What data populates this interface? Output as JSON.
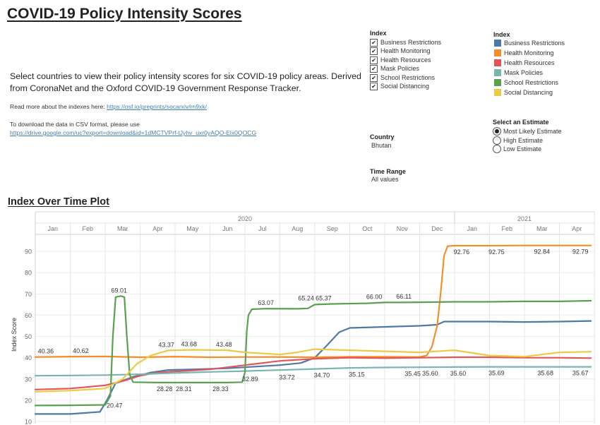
{
  "page": {
    "title": "COVID-19 Policy Intensity Scores",
    "intro": "Select countries to view their policy intensity scores for six COVID-19 policy areas. Derived from CoronaNet and the Oxford COVID-19 Government Response Tracker.",
    "read_more_label": "Read more about the indexes here: ",
    "read_more_link": "https://osf.io/preprints/socarxiv/rn9xk/",
    "download_label": "To download the data in CSV format, please use",
    "download_link": "https://drive.google.com/uc?export=download&id=1dMCTVPrf-tJyhv_uxr0yAQO-Elx0QOCG"
  },
  "index_filter": {
    "title": "Index",
    "items": [
      "Business Restrictions",
      "Health Monitoring",
      "Health Resources",
      "Mask Policies",
      "School Restrictions",
      "Social Distancing"
    ],
    "check_glyph": "✔"
  },
  "legend": {
    "title": "Index",
    "items": [
      {
        "label": "Business Restrictions",
        "color": "#4e79a7"
      },
      {
        "label": "Health Monitoring",
        "color": "#f28e2b"
      },
      {
        "label": "Health Resources",
        "color": "#e15759"
      },
      {
        "label": "Mask Policies",
        "color": "#76b7b2"
      },
      {
        "label": "School Restrictions",
        "color": "#59a14f"
      },
      {
        "label": "Social Distancing",
        "color": "#edc948"
      }
    ]
  },
  "estimate": {
    "title": "Select an Estimate",
    "options": [
      "Most Likely Estimate",
      "High Estimate",
      "Low Estimate"
    ],
    "selected": 0
  },
  "country": {
    "label": "Country",
    "value": "Bhutan"
  },
  "time_range": {
    "label": "Time Range",
    "value": "All values"
  },
  "plot_title": "Index Over Time Plot",
  "chart_data": {
    "type": "line",
    "title": "Index Over Time Plot",
    "ylabel": "Index Score",
    "xlabel": "",
    "ylim": [
      9,
      98
    ],
    "yticks": [
      10,
      20,
      30,
      40,
      50,
      60,
      70,
      80,
      90
    ],
    "grid": true,
    "x_unit": "months since Jan 2020 (0 = start of Jan 2020)",
    "xlim": [
      0,
      16
    ],
    "year_labels": [
      {
        "label": "2020",
        "x": 6
      },
      {
        "label": "2021",
        "x": 14
      }
    ],
    "month_labels": [
      "Jan",
      "Feb",
      "Mar",
      "Apr",
      "May",
      "Jun",
      "Jul",
      "Aug",
      "Sep",
      "Oct",
      "Nov",
      "Dec",
      "Jan",
      "Feb",
      "Mar",
      "Apr"
    ],
    "series": [
      {
        "name": "Business Restrictions",
        "color": "#4e79a7",
        "points": [
          [
            0,
            13.5
          ],
          [
            1,
            13.5
          ],
          [
            1.85,
            14.5
          ],
          [
            2.05,
            20
          ],
          [
            2.3,
            28
          ],
          [
            2.8,
            31
          ],
          [
            3.3,
            33
          ],
          [
            3.8,
            34.2
          ],
          [
            4.5,
            34.5
          ],
          [
            5.5,
            35
          ],
          [
            6.5,
            36
          ],
          [
            7,
            36.5
          ],
          [
            7.6,
            37.5
          ],
          [
            8,
            40
          ],
          [
            8.3,
            45
          ],
          [
            8.7,
            52
          ],
          [
            9,
            54
          ],
          [
            10,
            54.5
          ],
          [
            11,
            55
          ],
          [
            11.5,
            55.5
          ],
          [
            11.7,
            57
          ],
          [
            12,
            57
          ],
          [
            13,
            57
          ],
          [
            14,
            56.8
          ],
          [
            15,
            57
          ],
          [
            15.9,
            57.3
          ]
        ]
      },
      {
        "name": "Health Monitoring",
        "color": "#f28e2b",
        "points": [
          [
            0,
            40.3
          ],
          [
            1,
            40.5
          ],
          [
            2,
            40.6
          ],
          [
            3,
            40.2
          ],
          [
            4,
            40.5
          ],
          [
            5,
            40.2
          ],
          [
            6,
            40.3
          ],
          [
            7,
            40.3
          ],
          [
            8,
            40.2
          ],
          [
            9,
            40.4
          ],
          [
            10,
            40.4
          ],
          [
            11,
            40.3
          ],
          [
            11.2,
            41
          ],
          [
            11.35,
            45
          ],
          [
            11.5,
            55
          ],
          [
            11.6,
            70
          ],
          [
            11.7,
            88
          ],
          [
            11.8,
            92.5
          ],
          [
            12,
            92.7
          ],
          [
            13,
            92.7
          ],
          [
            14,
            92.8
          ],
          [
            15,
            92.8
          ],
          [
            15.9,
            92.8
          ]
        ]
      },
      {
        "name": "Health Resources",
        "color": "#e15759",
        "points": [
          [
            0,
            25
          ],
          [
            1,
            25.5
          ],
          [
            2,
            27
          ],
          [
            2.5,
            29
          ],
          [
            3,
            31.5
          ],
          [
            3.5,
            33
          ],
          [
            4,
            33.5
          ],
          [
            5,
            34.5
          ],
          [
            6,
            36.5
          ],
          [
            7,
            38.5
          ],
          [
            8,
            39.5
          ],
          [
            9,
            40
          ],
          [
            10,
            39.8
          ],
          [
            11,
            40
          ],
          [
            12,
            40.2
          ],
          [
            13,
            40.2
          ],
          [
            14,
            40
          ],
          [
            15,
            40
          ],
          [
            15.9,
            39.8
          ]
        ]
      },
      {
        "name": "Mask Policies",
        "color": "#76b7b2",
        "points": [
          [
            0,
            31.5
          ],
          [
            1,
            31.6
          ],
          [
            2,
            31.8
          ],
          [
            3,
            32.2
          ],
          [
            4,
            32.8
          ],
          [
            5,
            33.3
          ],
          [
            6,
            33.7
          ],
          [
            7,
            34.2
          ],
          [
            8,
            34.7
          ],
          [
            9,
            35.2
          ],
          [
            10,
            35.4
          ],
          [
            11,
            35.5
          ],
          [
            12,
            35.6
          ],
          [
            13,
            35.7
          ],
          [
            14,
            35.7
          ],
          [
            15,
            35.7
          ],
          [
            15.9,
            35.7
          ]
        ]
      },
      {
        "name": "School Restrictions",
        "color": "#59a14f",
        "points": [
          [
            0,
            17.5
          ],
          [
            1,
            17.6
          ],
          [
            2,
            17.8
          ],
          [
            2.15,
            22
          ],
          [
            2.22,
            50
          ],
          [
            2.3,
            68.5
          ],
          [
            2.45,
            69
          ],
          [
            2.55,
            68.5
          ],
          [
            2.62,
            50
          ],
          [
            2.7,
            32
          ],
          [
            2.8,
            28.5
          ],
          [
            3.5,
            28.3
          ],
          [
            4.5,
            28.3
          ],
          [
            5.5,
            28.3
          ],
          [
            5.92,
            28.5
          ],
          [
            6.0,
            33
          ],
          [
            6.05,
            52
          ],
          [
            6.1,
            60
          ],
          [
            6.2,
            62.8
          ],
          [
            6.6,
            63.07
          ],
          [
            7.5,
            63
          ],
          [
            7.8,
            63.2
          ],
          [
            8,
            65
          ],
          [
            8.5,
            65.3
          ],
          [
            9.5,
            65.6
          ],
          [
            10,
            66
          ],
          [
            10.5,
            66
          ],
          [
            11,
            66.1
          ],
          [
            12,
            66.3
          ],
          [
            13,
            66.3
          ],
          [
            14,
            66.5
          ],
          [
            15,
            66.5
          ],
          [
            15.9,
            66.8
          ]
        ]
      },
      {
        "name": "Social Distancing",
        "color": "#edc948",
        "points": [
          [
            0,
            24
          ],
          [
            1,
            24.5
          ],
          [
            2,
            25.5
          ],
          [
            2.5,
            30
          ],
          [
            2.9,
            37
          ],
          [
            3.3,
            41
          ],
          [
            3.8,
            43.4
          ],
          [
            4.5,
            43.7
          ],
          [
            5.5,
            43.5
          ],
          [
            6,
            42.5
          ],
          [
            7,
            41.5
          ],
          [
            7.5,
            42.5
          ],
          [
            8,
            44
          ],
          [
            9,
            43.5
          ],
          [
            10,
            43
          ],
          [
            11,
            42.5
          ],
          [
            12,
            43.5
          ],
          [
            13,
            41
          ],
          [
            14,
            40.5
          ],
          [
            15,
            42.5
          ],
          [
            15.9,
            42.8
          ]
        ]
      }
    ],
    "annotations": [
      {
        "text": "40.36",
        "x": 0.3,
        "y": 40.36,
        "pos": "above"
      },
      {
        "text": "40.62",
        "x": 1.3,
        "y": 40.62,
        "pos": "above"
      },
      {
        "text": "69.01",
        "x": 2.4,
        "y": 69.01,
        "pos": "above"
      },
      {
        "text": "20.47",
        "x": 2.0,
        "y": 20.47,
        "pos": "right-below"
      },
      {
        "text": "43.37",
        "x": 3.75,
        "y": 43.37,
        "pos": "above"
      },
      {
        "text": "43.68",
        "x": 4.4,
        "y": 43.68,
        "pos": "above"
      },
      {
        "text": "43.48",
        "x": 5.4,
        "y": 43.48,
        "pos": "above"
      },
      {
        "text": "28.28",
        "x": 3.7,
        "y": 28.28,
        "pos": "below"
      },
      {
        "text": "28.31",
        "x": 4.25,
        "y": 28.31,
        "pos": "below"
      },
      {
        "text": "28.33",
        "x": 5.3,
        "y": 28.33,
        "pos": "below"
      },
      {
        "text": "32.89",
        "x": 6.15,
        "y": 32.89,
        "pos": "below"
      },
      {
        "text": "63.07",
        "x": 6.6,
        "y": 63.07,
        "pos": "above"
      },
      {
        "text": "33.72",
        "x": 7.2,
        "y": 33.72,
        "pos": "below"
      },
      {
        "text": "65.24",
        "x": 7.75,
        "y": 65.24,
        "pos": "above"
      },
      {
        "text": "65.37",
        "x": 8.25,
        "y": 65.37,
        "pos": "above"
      },
      {
        "text": "34.70",
        "x": 8.2,
        "y": 34.7,
        "pos": "below"
      },
      {
        "text": "35.15",
        "x": 9.2,
        "y": 35.15,
        "pos": "below"
      },
      {
        "text": "66.00",
        "x": 9.7,
        "y": 66.0,
        "pos": "above"
      },
      {
        "text": "66.11",
        "x": 10.55,
        "y": 66.11,
        "pos": "above"
      },
      {
        "text": "35.45",
        "x": 10.8,
        "y": 35.45,
        "pos": "below"
      },
      {
        "text": "35.60",
        "x": 11.3,
        "y": 35.6,
        "pos": "below"
      },
      {
        "text": "35.60",
        "x": 12.1,
        "y": 35.6,
        "pos": "below"
      },
      {
        "text": "92.76",
        "x": 12.2,
        "y": 92.76,
        "pos": "below"
      },
      {
        "text": "92.75",
        "x": 13.2,
        "y": 92.75,
        "pos": "below"
      },
      {
        "text": "35.69",
        "x": 13.2,
        "y": 35.69,
        "pos": "below"
      },
      {
        "text": "92.84",
        "x": 14.5,
        "y": 92.84,
        "pos": "below"
      },
      {
        "text": "35.68",
        "x": 14.6,
        "y": 35.68,
        "pos": "below"
      },
      {
        "text": "92.79",
        "x": 15.6,
        "y": 92.79,
        "pos": "below"
      },
      {
        "text": "35.67",
        "x": 15.6,
        "y": 35.67,
        "pos": "below"
      }
    ]
  }
}
